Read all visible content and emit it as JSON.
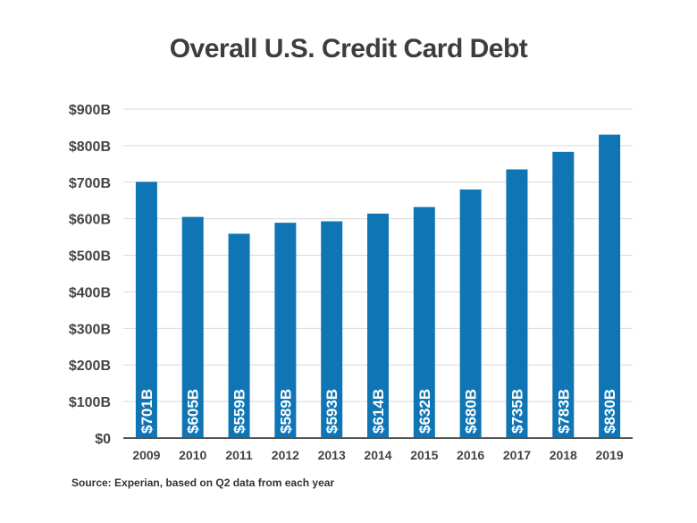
{
  "chart_data": {
    "type": "bar",
    "title": "Overall U.S. Credit Card Debt",
    "categories": [
      "2009",
      "2010",
      "2011",
      "2012",
      "2013",
      "2014",
      "2015",
      "2016",
      "2017",
      "2018",
      "2019"
    ],
    "values": [
      701,
      605,
      559,
      589,
      593,
      614,
      632,
      680,
      735,
      783,
      830
    ],
    "value_labels": [
      "$701B",
      "$605B",
      "$559B",
      "$589B",
      "$593B",
      "$614B",
      "$632B",
      "$680B",
      "$735B",
      "$783B",
      "$830B"
    ],
    "y_ticks": [
      0,
      100,
      200,
      300,
      400,
      500,
      600,
      700,
      800,
      900
    ],
    "y_tick_labels": [
      "$0",
      "$100B",
      "$200B",
      "$300B",
      "$400B",
      "$500B",
      "$600B",
      "$700B",
      "$800B",
      "$900B"
    ],
    "ylim": [
      0,
      900
    ],
    "xlabel": "",
    "ylabel": "",
    "grid": true,
    "bar_color": "#0f75b4",
    "grid_color": "#d9d9d9",
    "axis_color": "#555555"
  },
  "source": "Source: Experian, based on Q2 data from each year"
}
